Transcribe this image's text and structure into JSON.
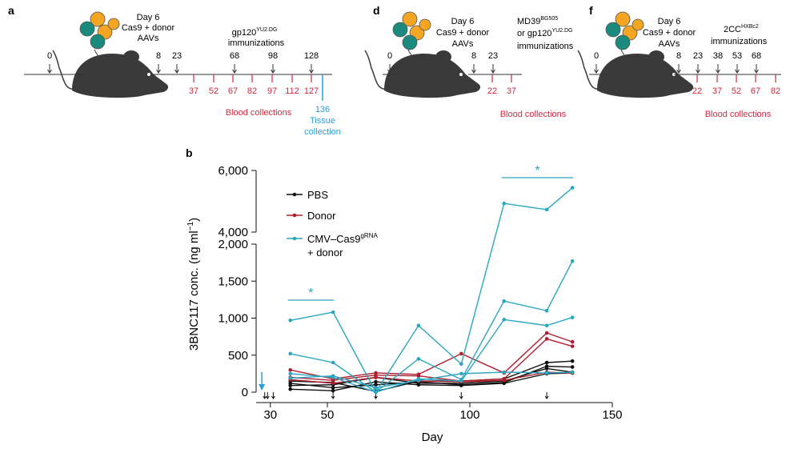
{
  "panels": {
    "a": {
      "letter": "a",
      "day_label": "Day 6",
      "cas9_label": "Cas9 + donor",
      "aavs_label": "AAVs",
      "immunogen": "gp120",
      "immunogen_sup": "YU2.DG",
      "immunizations_label": "immunizations",
      "top_days": [
        "0",
        "8",
        "23",
        "68",
        "98",
        "128"
      ],
      "blood_days": [
        "37",
        "52",
        "67",
        "82",
        "97",
        "112",
        "127"
      ],
      "blood_label": "Blood collections",
      "tissue_day": "136",
      "tissue_line1": "Tissue",
      "tissue_line2": "collection"
    },
    "d": {
      "letter": "d",
      "day_label": "Day 6",
      "cas9_label": "Cas9 + donor",
      "aavs_label": "AAVs",
      "immunogen_line1": "MD39",
      "immunogen_line1_sup": "BG505",
      "immunogen_line2": "or gp120",
      "immunogen_line2_sup": "YU2.DG",
      "immunizations_label": "immunizations",
      "top_days": [
        "0",
        "8",
        "23"
      ],
      "blood_days": [
        "22",
        "37"
      ],
      "blood_label": "Blood collections"
    },
    "f": {
      "letter": "f",
      "day_label": "Day 6",
      "cas9_label": "Cas9 + donor",
      "aavs_label": "AAVs",
      "immunogen": "2CC",
      "immunogen_sup": "HXBc2",
      "immunizations_label": "immunizations",
      "top_days": [
        "0",
        "8",
        "23",
        "38",
        "53",
        "68"
      ],
      "blood_days": [
        "22",
        "37",
        "52",
        "67",
        "82"
      ],
      "blood_label": "Blood collections"
    }
  },
  "colors": {
    "pbs": "#111111",
    "donor": "#b01e2d",
    "cmv": "#2aa6c0",
    "blood": "#d0283e",
    "tissue": "#2a9fd6",
    "mouse": "#3a3a3a",
    "cell_orange": "#f4a623",
    "cell_teal": "#1a8a7e"
  },
  "chart_data": {
    "type": "line",
    "panel_letter": "b",
    "xlabel": "Day",
    "ylabel": "3BNC117 conc. (ng ml",
    "ylabel_sup": "−1",
    "ylabel_close": ")",
    "xlim": [
      25,
      150
    ],
    "xticks": [
      "30",
      "50",
      "100",
      "150"
    ],
    "ylim_lower": [
      0,
      2000
    ],
    "ylim_upper": [
      4000,
      6000
    ],
    "yticks_lower": [
      "0",
      "500",
      "1,000",
      "1,500",
      "2,000"
    ],
    "yticks_upper": [
      "4,000",
      "6,000"
    ],
    "immunization_days": [
      28,
      29,
      31,
      52,
      67,
      97,
      127
    ],
    "aav_day": 27,
    "x": [
      37,
      52,
      67,
      82,
      97,
      112,
      127,
      136
    ],
    "legend": {
      "pbs": "PBS",
      "donor": "Donor",
      "cmv_line1": "CMV–Cas9",
      "cmv_sup": "gRNA",
      "cmv_line2": "+ donor"
    },
    "significance": [
      {
        "label": "*",
        "x_start": 37,
        "x_end": 52
      },
      {
        "label": "*",
        "x_start": 112,
        "x_end": 136
      }
    ],
    "series": [
      {
        "name": "PBS",
        "group": "pbs",
        "values": [
          150,
          130,
          10,
          150,
          150,
          180,
          400,
          420
        ]
      },
      {
        "name": "PBS",
        "group": "pbs",
        "values": [
          120,
          60,
          100,
          140,
          100,
          130,
          350,
          340
        ]
      },
      {
        "name": "PBS",
        "group": "pbs",
        "values": [
          90,
          100,
          200,
          120,
          120,
          150,
          320,
          270
        ]
      },
      {
        "name": "PBS",
        "group": "pbs",
        "values": [
          40,
          20,
          140,
          100,
          90,
          120,
          250,
          260
        ]
      },
      {
        "name": "Donor",
        "group": "donor",
        "values": [
          300,
          180,
          260,
          240,
          520,
          260,
          800,
          680
        ]
      },
      {
        "name": "Donor",
        "group": "donor",
        "values": [
          200,
          160,
          230,
          220,
          150,
          180,
          720,
          620
        ]
      },
      {
        "name": "Donor",
        "group": "donor",
        "values": [
          170,
          120,
          200,
          150,
          140,
          160,
          270,
          260
        ]
      },
      {
        "name": "CMV–Cas9 gRNA + donor",
        "group": "cmv",
        "values": [
          970,
          1080,
          0,
          900,
          380,
          4930,
          4730,
          5440
        ]
      },
      {
        "name": "CMV–Cas9 gRNA + donor",
        "group": "cmv",
        "values": [
          520,
          400,
          0,
          450,
          170,
          1230,
          1100,
          1770
        ]
      },
      {
        "name": "CMV–Cas9 gRNA + donor",
        "group": "cmv",
        "values": [
          250,
          200,
          0,
          180,
          150,
          980,
          900,
          1010
        ]
      },
      {
        "name": "CMV–Cas9 gRNA + donor",
        "group": "cmv",
        "values": [
          190,
          220,
          60,
          160,
          250,
          270,
          260,
          270
        ]
      }
    ]
  }
}
